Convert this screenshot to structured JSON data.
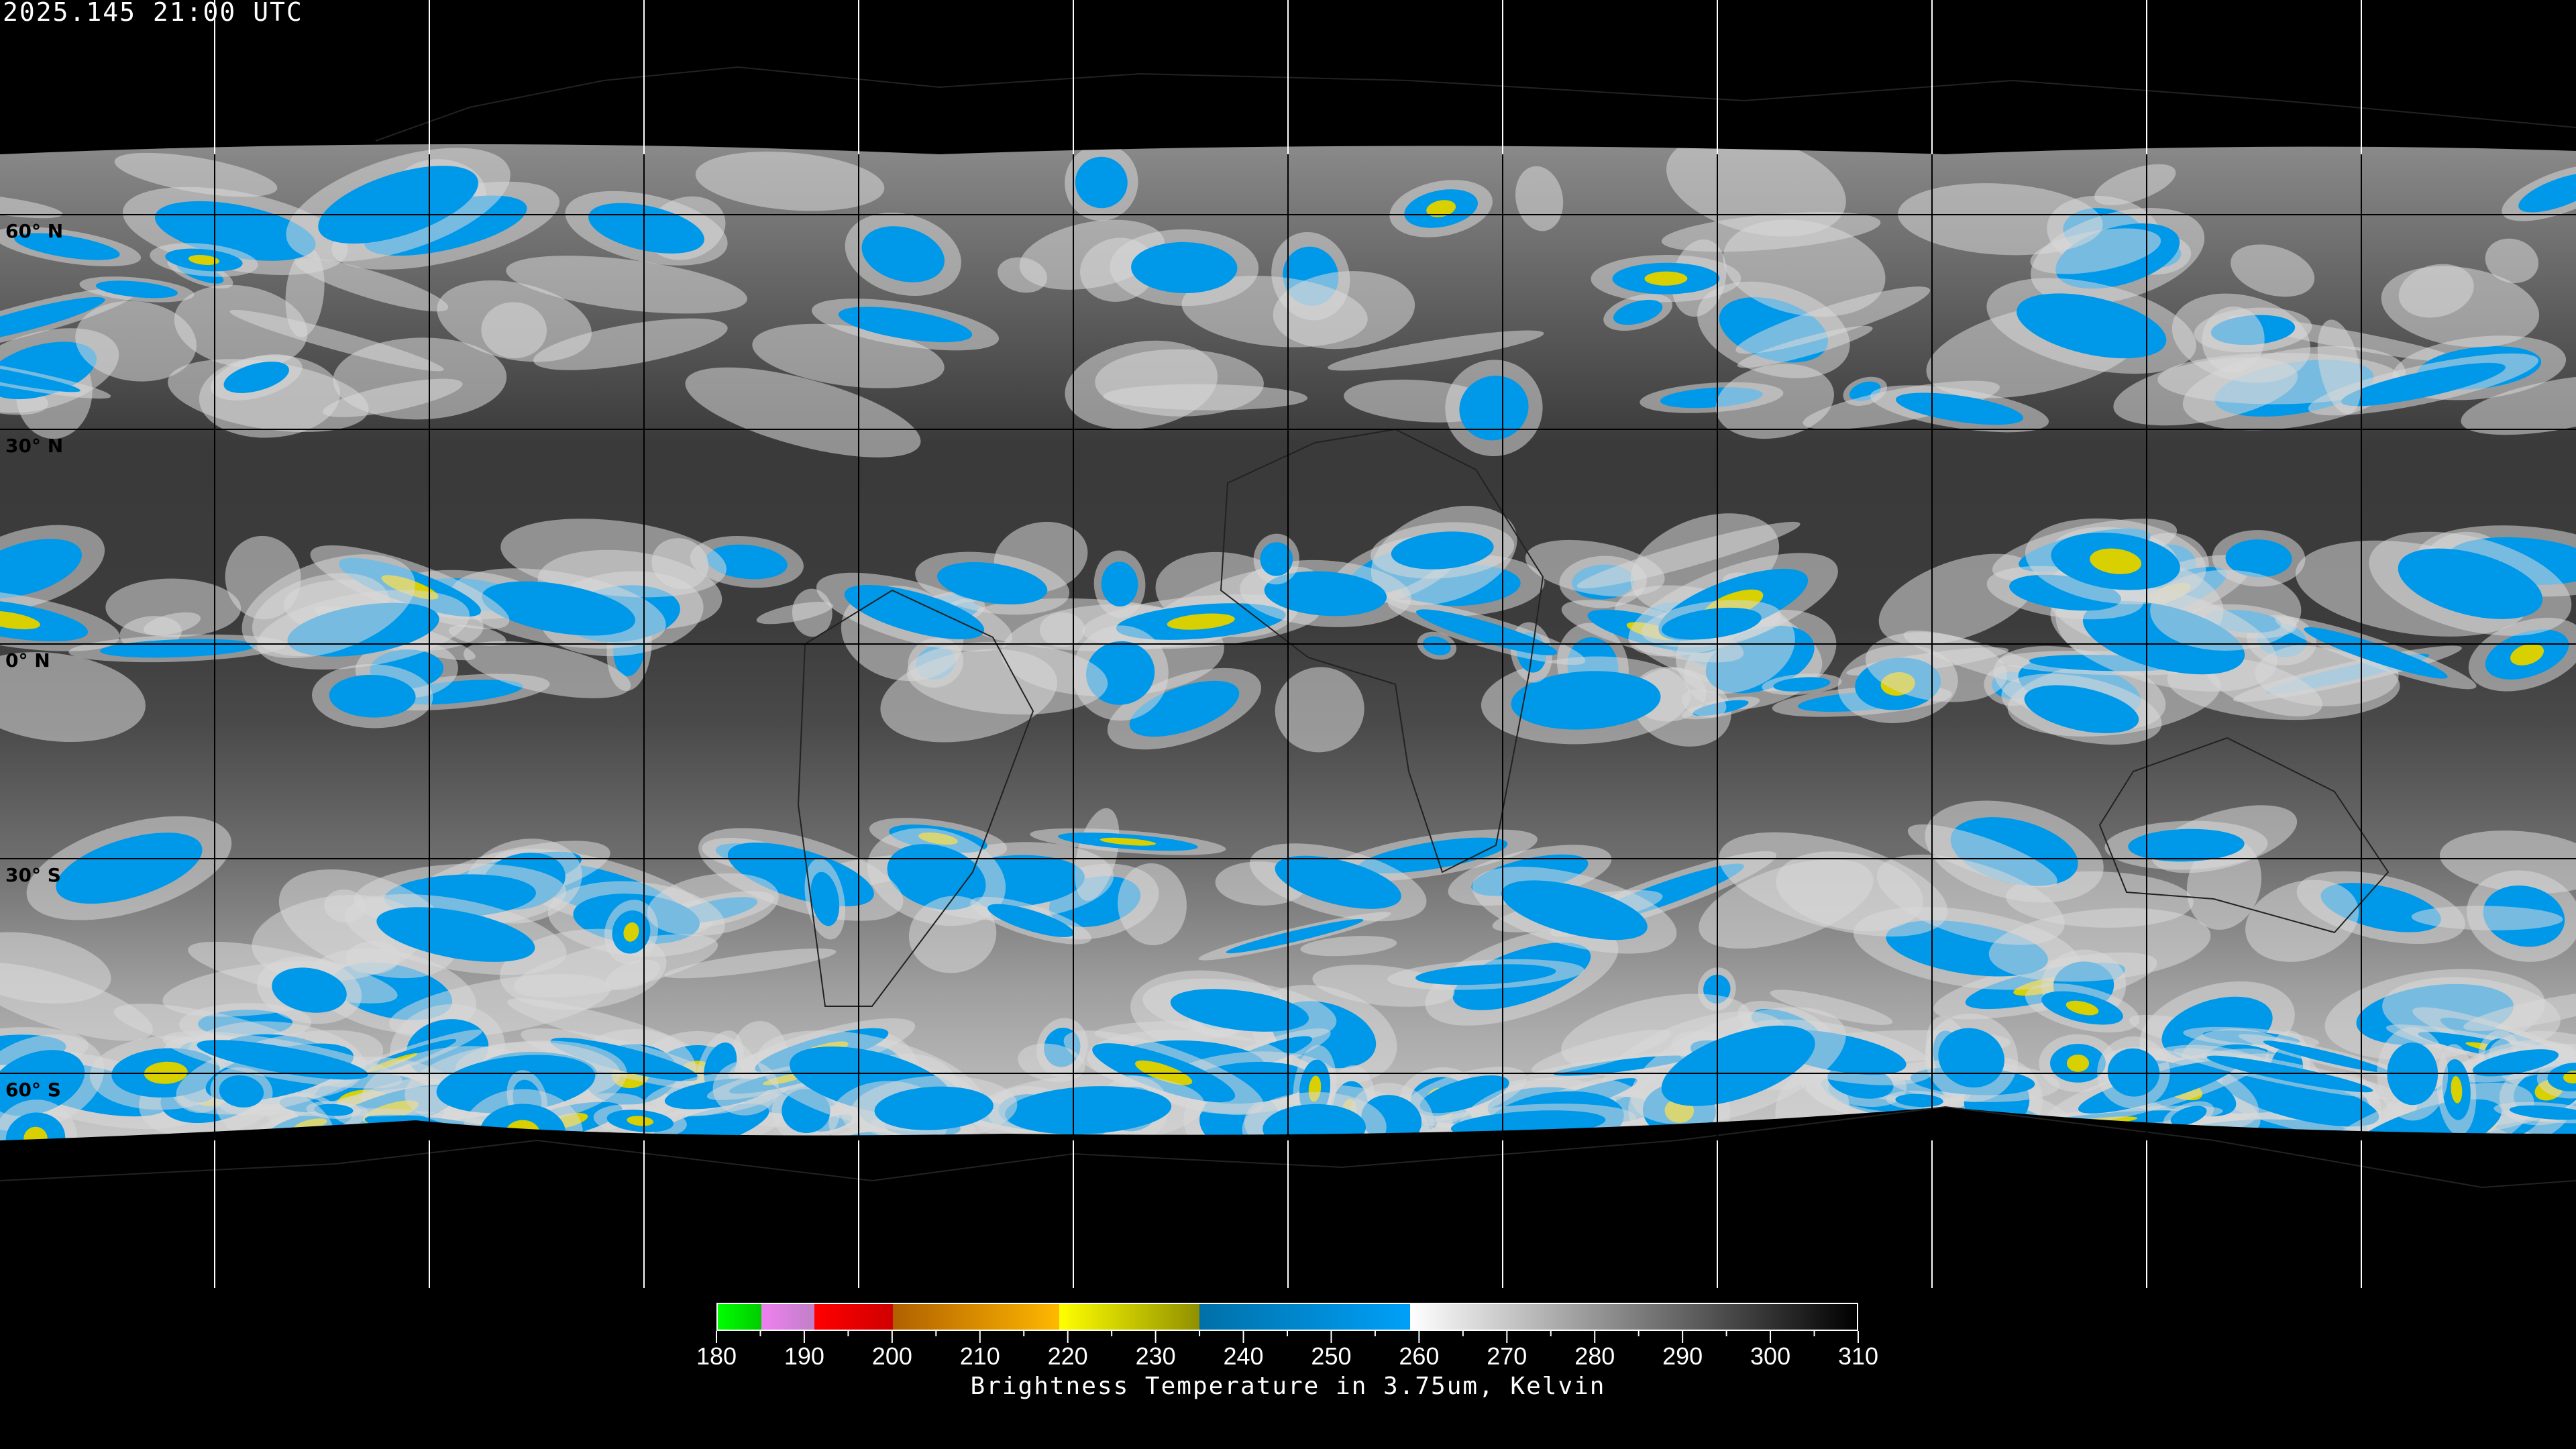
{
  "header": {
    "timestamp": "2025.145 21:00 UTC"
  },
  "map": {
    "projection": "equirectangular",
    "gridlines": {
      "longitude_step_deg": 30,
      "latitude_step_deg": 30
    },
    "lat_labels": [
      "60° N",
      "30° N",
      "0° N",
      "30° S",
      "60° S"
    ],
    "lat_values": [
      60,
      30,
      0,
      -30,
      -60
    ],
    "coastlines": true
  },
  "colorbar": {
    "title": "Brightness Temperature in 3.75um, Kelvin",
    "min": 180,
    "max": 310,
    "tick_labels": [
      "180",
      "190",
      "200",
      "210",
      "220",
      "230",
      "240",
      "250",
      "260",
      "270",
      "280",
      "290",
      "300",
      "310"
    ],
    "minor_tick_step": 5,
    "segments": [
      {
        "from": 180,
        "to": 185,
        "start": "#00ff00",
        "end": "#00cc00"
      },
      {
        "from": 185,
        "to": 191,
        "start": "#f080f0",
        "end": "#c080c8"
      },
      {
        "from": 191,
        "to": 200,
        "start": "#ff0000",
        "end": "#d00000"
      },
      {
        "from": 200,
        "to": 219,
        "start": "#b06000",
        "end": "#ffb800"
      },
      {
        "from": 219,
        "to": 235,
        "start": "#ffff00",
        "end": "#909000"
      },
      {
        "from": 235,
        "to": 259,
        "start": "#0070a8",
        "end": "#00a0f8"
      },
      {
        "from": 259,
        "to": 310,
        "start": "#ffffff",
        "end": "#000000"
      }
    ]
  }
}
